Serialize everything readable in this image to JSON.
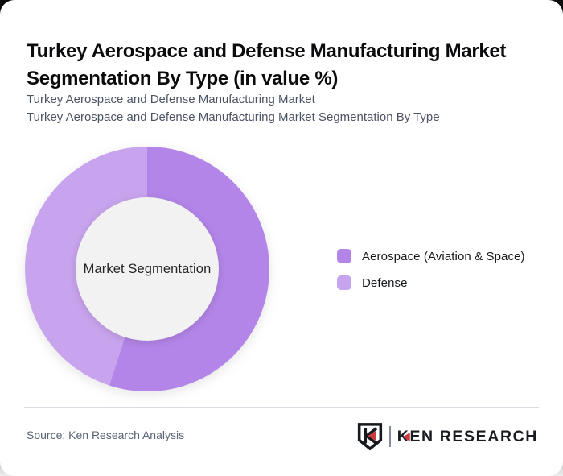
{
  "header": {
    "title": "Turkey Aerospace and Defense Manufacturing Market Segmentation By Type (in value %)",
    "title_lines": [
      "Turkey Aerospace and Defense Manufacturing Market",
      "Segmentation By Type (in value %)"
    ],
    "subtitle_lines": [
      "Turkey Aerospace and Defense Manufacturing Market",
      "Turkey Aerospace and Defense Manufacturing Market Segmentation By Type"
    ]
  },
  "chart_data": {
    "type": "pie",
    "subtype": "donut",
    "title": "Turkey Aerospace and Defense Manufacturing Market Segmentation By Type (in value %)",
    "center_label": "Market Segmentation",
    "categories": [
      "Aerospace (Aviation & Space)",
      "Defense"
    ],
    "values": [
      55,
      45
    ],
    "unit": "percent of market value",
    "colors": [
      "#b385e8",
      "#c9a4ee"
    ],
    "hole_color": "#f2f2f2",
    "inner_radius_pct": 58,
    "start_angle_deg": 0,
    "direction": "clockwise",
    "legend_position": "right",
    "data_labels": "none"
  },
  "footer": {
    "source": "Source: Ken Research Analysis",
    "brand": {
      "wordmark": "KEN RESEARCH",
      "accent_color": "#cb3a3f",
      "ink_color": "#181c21"
    }
  }
}
